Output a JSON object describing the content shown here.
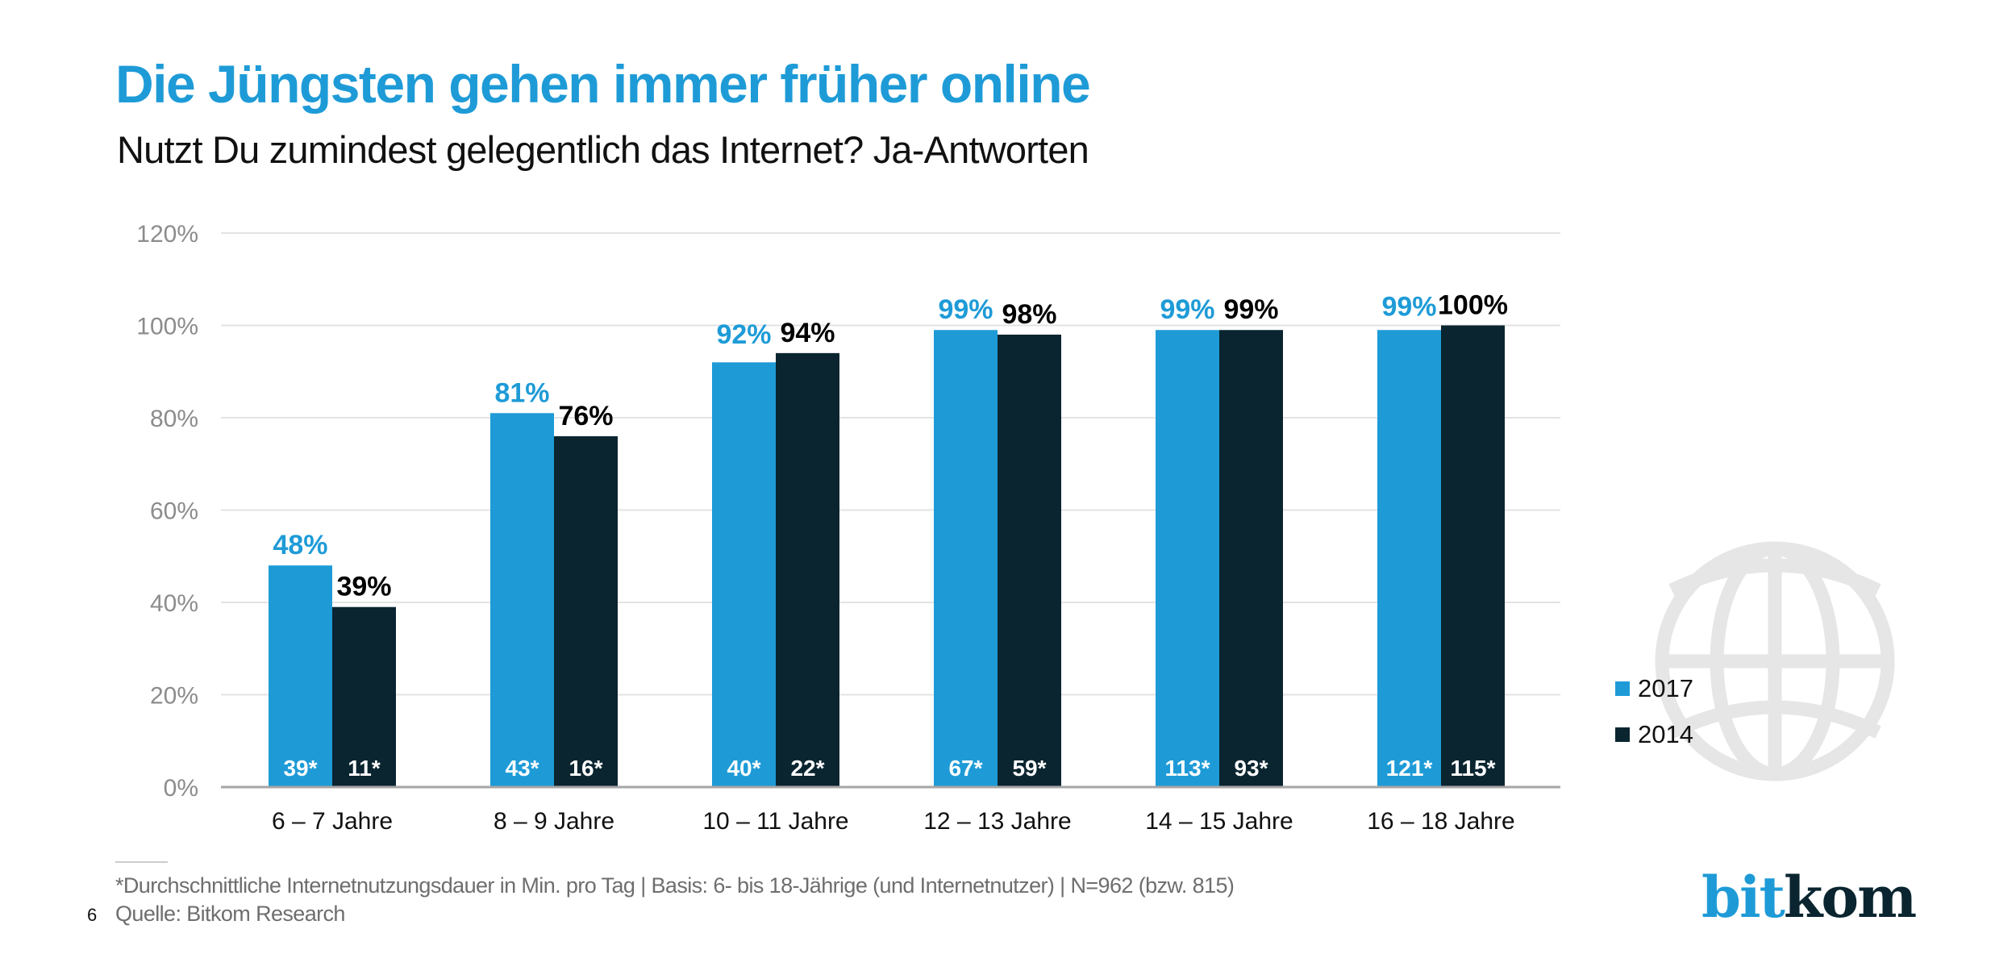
{
  "header": {
    "title": "Die Jüngsten gehen immer früher online",
    "subtitle": "Nutzt Du zumindest gelegentlich das Internet? Ja-Antworten"
  },
  "colors": {
    "accent": "#1E9BD7",
    "series_2017": "#1E9BD7",
    "series_2014": "#0A2530",
    "grid": "#e3e3e3",
    "axis": "#a6a6a6",
    "tick_label": "#8c8c8c",
    "globe": "#e6e6e6"
  },
  "chart_data": {
    "type": "bar",
    "title": "Die Jüngsten gehen immer früher online",
    "subtitle": "Nutzt Du zumindest gelegentlich das Internet? Ja-Antworten",
    "xlabel": "",
    "ylabel": "",
    "categories": [
      "6 – 7 Jahre",
      "8 – 9 Jahre",
      "10 – 11 Jahre",
      "12 – 13 Jahre",
      "14 – 15 Jahre",
      "16 – 18 Jahre"
    ],
    "ylim": [
      0,
      120
    ],
    "yticks": [
      0,
      20,
      40,
      60,
      80,
      100,
      120
    ],
    "ytick_labels": [
      "0%",
      "20%",
      "40%",
      "60%",
      "80%",
      "100%",
      "120%"
    ],
    "grid": true,
    "legend_position": "right",
    "series": [
      {
        "name": "2017",
        "values": [
          48,
          81,
          92,
          99,
          99,
          99
        ],
        "value_labels": [
          "48%",
          "81%",
          "92%",
          "99%",
          "99%",
          "99%"
        ],
        "inner_labels": [
          "39*",
          "43*",
          "40*",
          "67*",
          "113*",
          "121*"
        ]
      },
      {
        "name": "2014",
        "values": [
          39,
          76,
          94,
          98,
          99,
          100
        ],
        "value_labels": [
          "39%",
          "76%",
          "94%",
          "98%",
          "99%",
          "100%"
        ],
        "inner_labels": [
          "11*",
          "16*",
          "22*",
          "59*",
          "93*",
          "115*"
        ]
      }
    ],
    "annotations": [
      "* = Durchschnittliche Internetnutzungsdauer in Min. pro Tag"
    ]
  },
  "legend": {
    "items": [
      {
        "label": "2017",
        "color": "#1E9BD7"
      },
      {
        "label": "2014",
        "color": "#0A2530"
      }
    ]
  },
  "footer": {
    "footnote": "*Durchschnittliche Internetnutzungsdauer in Min. pro Tag | Basis: 6- bis 18-Jährige (und Internetnutzer) | N=962 (bzw. 815)",
    "source": "Quelle: Bitkom Research",
    "page_number": "6"
  },
  "logo": {
    "part1": "bit",
    "part2": "kom"
  },
  "decoration": {
    "icon": "globe-icon"
  }
}
